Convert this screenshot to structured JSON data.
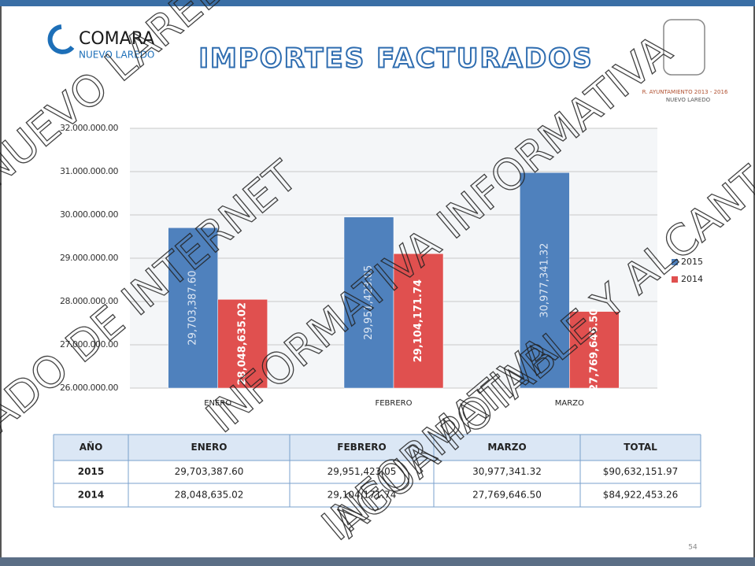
{
  "header": {
    "logo": "COMARA",
    "logo_sub": "NUEVO LAREDO",
    "title": "IMPORTES FACTURADOS",
    "gov": "R. AYUNTAMIENTO 2013 - 2016",
    "gov_sub": "NUEVO LAREDO"
  },
  "chart_data": {
    "type": "bar",
    "categories": [
      "ENERO",
      "FEBRERO",
      "MARZO"
    ],
    "series": [
      {
        "name": "2015",
        "color": "#4f81bd",
        "values": [
          29703387.6,
          29951423.05,
          30977341.32
        ],
        "value_labels": [
          "29,703,387.60",
          "29,951,423.05",
          "30,977,341.32"
        ]
      },
      {
        "name": "2014",
        "color": "#e0504f",
        "values": [
          28048635.02,
          29104171.74,
          27769646.5
        ],
        "value_labels": [
          "28,048,635.02",
          "29,104,171.74",
          "27,769,646.50"
        ]
      }
    ],
    "ylim": [
      26000000,
      32000000
    ],
    "yticks": [
      {
        "value": 26000000,
        "label": "26.000.000.00"
      },
      {
        "value": 27000000,
        "label": "27.000.000.00"
      },
      {
        "value": 28000000,
        "label": "28.000.000.00"
      },
      {
        "value": 29000000,
        "label": "29.000.000.00"
      },
      {
        "value": 30000000,
        "label": "30.000.000.00"
      },
      {
        "value": 31000000,
        "label": "31.000.000.00"
      },
      {
        "value": 32000000,
        "label": "32.000.000.00"
      }
    ],
    "grid": true,
    "legend": "right"
  },
  "table": {
    "header": [
      "AÑO",
      "ENERO",
      "FEBRERO",
      "MARZO",
      "TOTAL"
    ],
    "rows": [
      [
        "2015",
        "29,703,387.60",
        "29,951,423.05",
        "30,977,341.32",
        "$90,632,151.97"
      ],
      [
        "2014",
        "28,048,635.02",
        "29,104,171.74",
        "27,769,646.50",
        "$84,922,453.26"
      ]
    ]
  },
  "page_number": "54",
  "watermark": [
    "NUEVO LAREDO",
    "ADO DE INTERNET",
    "INFORMATIVA INFORMATIVA",
    "INFORMATIVA",
    "AGUA POTABLE Y ALCANT"
  ]
}
